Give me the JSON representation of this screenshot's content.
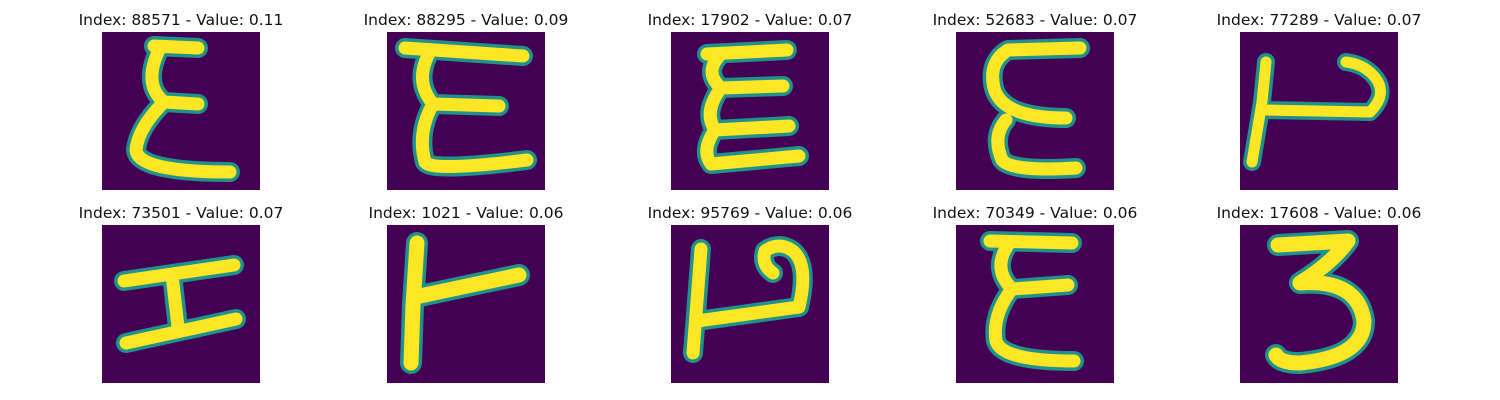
{
  "panels": [
    {
      "title": "Index: 88571 - Value: 0.11",
      "glyph": "epsilon-glyph"
    },
    {
      "title": "Index: 88295 - Value: 0.09",
      "glyph": "epsilon-glyph"
    },
    {
      "title": "Index: 17902 - Value: 0.07",
      "glyph": "epsilon-glyph"
    },
    {
      "title": "Index: 52683 - Value: 0.07",
      "glyph": "epsilon-glyph"
    },
    {
      "title": "Index: 77289 - Value: 0.07",
      "glyph": "rotated-h-glyph"
    },
    {
      "title": "Index: 73501 - Value: 0.07",
      "glyph": "rotated-h-glyph"
    },
    {
      "title": "Index: 1021 - Value: 0.06",
      "glyph": "t-bar-glyph"
    },
    {
      "title": "Index: 95769 - Value: 0.06",
      "glyph": "rotated-h-glyph"
    },
    {
      "title": "Index: 70349 - Value: 0.06",
      "glyph": "epsilon-glyph"
    },
    {
      "title": "Index: 17608 - Value: 0.06",
      "glyph": "three-glyph"
    }
  ],
  "colors": {
    "background": "#440154",
    "edge": "#21918c",
    "stroke": "#fde725"
  }
}
